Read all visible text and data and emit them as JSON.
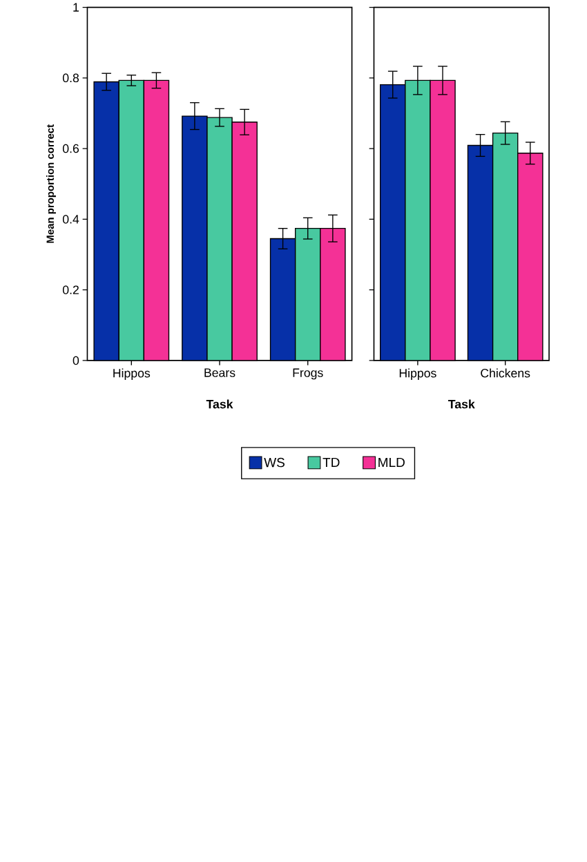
{
  "chart_data": [
    {
      "type": "bar",
      "xlabel": "Task",
      "ylabel": "Mean proportion correct",
      "categories": [
        "Hippos",
        "Bears",
        "Frogs"
      ],
      "ylim": [
        0,
        1
      ],
      "yticks": [
        0,
        0.2,
        0.4,
        0.6,
        0.8,
        1
      ],
      "legend": "bottom",
      "series": [
        {
          "name": "WS",
          "color": "#0630a8",
          "values": [
            0.789,
            0.692,
            0.345
          ],
          "errors": [
            0.024,
            0.038,
            0.029
          ]
        },
        {
          "name": "TD",
          "color": "#48c9a0",
          "values": [
            0.793,
            0.688,
            0.374
          ],
          "errors": [
            0.015,
            0.025,
            0.03
          ]
        },
        {
          "name": "MLD",
          "color": "#f43196",
          "values": [
            0.793,
            0.675,
            0.374
          ],
          "errors": [
            0.022,
            0.036,
            0.038
          ]
        }
      ]
    },
    {
      "type": "bar",
      "xlabel": "Task",
      "categories": [
        "Hippos",
        "Chickens"
      ],
      "ylim": [
        0,
        1
      ],
      "yticks": [
        0,
        0.2,
        0.4,
        0.6,
        0.8,
        1
      ],
      "tick_labels": "x",
      "series": [
        {
          "color": "#0630a8",
          "values": [
            0.781,
            0.609
          ],
          "errors": [
            0.038,
            0.031
          ]
        },
        {
          "color": "#48c9a0",
          "values": [
            0.793,
            0.644
          ],
          "errors": [
            0.04,
            0.032
          ]
        },
        {
          "color": "#f43196",
          "values": [
            0.793,
            0.587
          ],
          "errors": [
            0.04,
            0.031
          ]
        }
      ]
    }
  ]
}
